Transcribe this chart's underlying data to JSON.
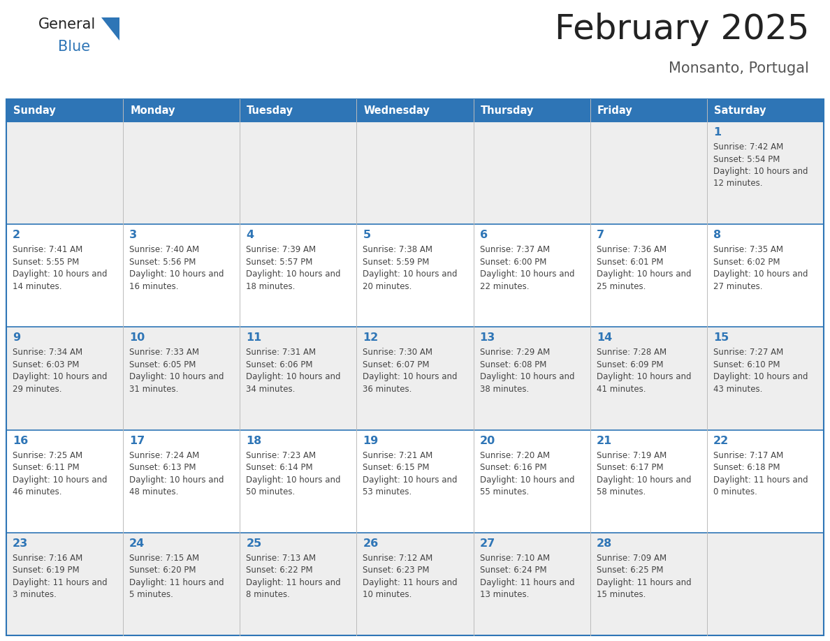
{
  "title": "February 2025",
  "subtitle": "Monsanto, Portugal",
  "days_of_week": [
    "Sunday",
    "Monday",
    "Tuesday",
    "Wednesday",
    "Thursday",
    "Friday",
    "Saturday"
  ],
  "header_bg": "#2E75B6",
  "header_text": "#FFFFFF",
  "cell_bg_even": "#EEEEEE",
  "cell_bg_odd": "#FFFFFF",
  "border_color": "#2E75B6",
  "title_color": "#222222",
  "subtitle_color": "#555555",
  "day_number_color": "#2E75B6",
  "cell_text_color": "#444444",
  "logo_general_color": "#222222",
  "logo_blue_color": "#2E75B6",
  "calendar": [
    [
      null,
      null,
      null,
      null,
      null,
      null,
      {
        "day": 1,
        "sunrise": "7:42 AM",
        "sunset": "5:54 PM",
        "daylight": "10 hours and 12 minutes."
      }
    ],
    [
      {
        "day": 2,
        "sunrise": "7:41 AM",
        "sunset": "5:55 PM",
        "daylight": "10 hours and 14 minutes."
      },
      {
        "day": 3,
        "sunrise": "7:40 AM",
        "sunset": "5:56 PM",
        "daylight": "10 hours and 16 minutes."
      },
      {
        "day": 4,
        "sunrise": "7:39 AM",
        "sunset": "5:57 PM",
        "daylight": "10 hours and 18 minutes."
      },
      {
        "day": 5,
        "sunrise": "7:38 AM",
        "sunset": "5:59 PM",
        "daylight": "10 hours and 20 minutes."
      },
      {
        "day": 6,
        "sunrise": "7:37 AM",
        "sunset": "6:00 PM",
        "daylight": "10 hours and 22 minutes."
      },
      {
        "day": 7,
        "sunrise": "7:36 AM",
        "sunset": "6:01 PM",
        "daylight": "10 hours and 25 minutes."
      },
      {
        "day": 8,
        "sunrise": "7:35 AM",
        "sunset": "6:02 PM",
        "daylight": "10 hours and 27 minutes."
      }
    ],
    [
      {
        "day": 9,
        "sunrise": "7:34 AM",
        "sunset": "6:03 PM",
        "daylight": "10 hours and 29 minutes."
      },
      {
        "day": 10,
        "sunrise": "7:33 AM",
        "sunset": "6:05 PM",
        "daylight": "10 hours and 31 minutes."
      },
      {
        "day": 11,
        "sunrise": "7:31 AM",
        "sunset": "6:06 PM",
        "daylight": "10 hours and 34 minutes."
      },
      {
        "day": 12,
        "sunrise": "7:30 AM",
        "sunset": "6:07 PM",
        "daylight": "10 hours and 36 minutes."
      },
      {
        "day": 13,
        "sunrise": "7:29 AM",
        "sunset": "6:08 PM",
        "daylight": "10 hours and 38 minutes."
      },
      {
        "day": 14,
        "sunrise": "7:28 AM",
        "sunset": "6:09 PM",
        "daylight": "10 hours and 41 minutes."
      },
      {
        "day": 15,
        "sunrise": "7:27 AM",
        "sunset": "6:10 PM",
        "daylight": "10 hours and 43 minutes."
      }
    ],
    [
      {
        "day": 16,
        "sunrise": "7:25 AM",
        "sunset": "6:11 PM",
        "daylight": "10 hours and 46 minutes."
      },
      {
        "day": 17,
        "sunrise": "7:24 AM",
        "sunset": "6:13 PM",
        "daylight": "10 hours and 48 minutes."
      },
      {
        "day": 18,
        "sunrise": "7:23 AM",
        "sunset": "6:14 PM",
        "daylight": "10 hours and 50 minutes."
      },
      {
        "day": 19,
        "sunrise": "7:21 AM",
        "sunset": "6:15 PM",
        "daylight": "10 hours and 53 minutes."
      },
      {
        "day": 20,
        "sunrise": "7:20 AM",
        "sunset": "6:16 PM",
        "daylight": "10 hours and 55 minutes."
      },
      {
        "day": 21,
        "sunrise": "7:19 AM",
        "sunset": "6:17 PM",
        "daylight": "10 hours and 58 minutes."
      },
      {
        "day": 22,
        "sunrise": "7:17 AM",
        "sunset": "6:18 PM",
        "daylight": "11 hours and 0 minutes."
      }
    ],
    [
      {
        "day": 23,
        "sunrise": "7:16 AM",
        "sunset": "6:19 PM",
        "daylight": "11 hours and 3 minutes."
      },
      {
        "day": 24,
        "sunrise": "7:15 AM",
        "sunset": "6:20 PM",
        "daylight": "11 hours and 5 minutes."
      },
      {
        "day": 25,
        "sunrise": "7:13 AM",
        "sunset": "6:22 PM",
        "daylight": "11 hours and 8 minutes."
      },
      {
        "day": 26,
        "sunrise": "7:12 AM",
        "sunset": "6:23 PM",
        "daylight": "11 hours and 10 minutes."
      },
      {
        "day": 27,
        "sunrise": "7:10 AM",
        "sunset": "6:24 PM",
        "daylight": "11 hours and 13 minutes."
      },
      {
        "day": 28,
        "sunrise": "7:09 AM",
        "sunset": "6:25 PM",
        "daylight": "11 hours and 15 minutes."
      },
      null
    ]
  ]
}
